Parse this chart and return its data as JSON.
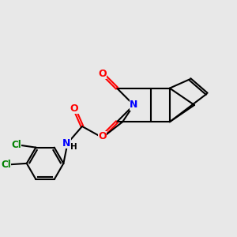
{
  "background_color": "#e8e8e8",
  "bond_color": "#000000",
  "N_color": "#0000ff",
  "O_color": "#ff0000",
  "Cl_color": "#008000",
  "line_width": 1.5,
  "figsize": [
    3.0,
    3.0
  ],
  "dpi": 100,
  "xlim": [
    0,
    10
  ],
  "ylim": [
    0,
    10
  ]
}
